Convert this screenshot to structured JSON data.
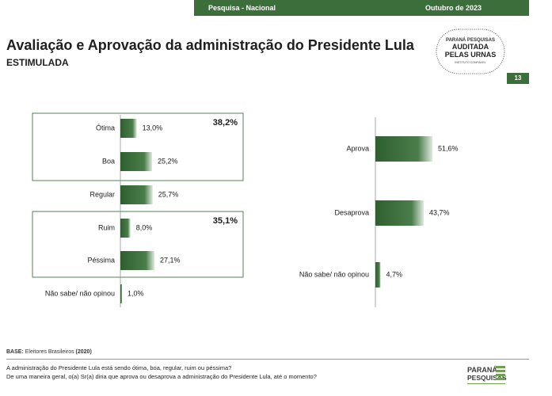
{
  "header": {
    "survey": "Pesquisa - Nacional",
    "date": "Outubro de 2023",
    "page_number": "13"
  },
  "title": "Avaliação e Aprovação da administração do Presidente Lula",
  "subtitle": "ESTIMULADA",
  "seal": {
    "line1": "PARANÁ PESQUISAS",
    "line2": "AUDITADA",
    "line3": "PELAS URNAS",
    "line4": "INSTITUTO CONFIÁVEL"
  },
  "chart_data": [
    {
      "type": "bar",
      "orientation": "horizontal",
      "categories": [
        "Ótima",
        "Boa",
        "Regular",
        "Ruim",
        "Péssima",
        "Não sabe/ não opinou"
      ],
      "values": [
        13.0,
        25.2,
        25.7,
        8.0,
        27.1,
        1.0
      ],
      "value_labels": [
        "13,0%",
        "25,2%",
        "25,7%",
        "8,0%",
        "27,1%",
        "1,0%"
      ],
      "groups": [
        {
          "members": [
            "Ótima",
            "Boa"
          ],
          "total_label": "38,2%"
        },
        {
          "members": [
            "Ruim",
            "Péssima"
          ],
          "total_label": "35,1%"
        }
      ],
      "color": "#3c6e3c"
    },
    {
      "type": "bar",
      "orientation": "horizontal",
      "categories": [
        "Aprova",
        "Desaprova",
        "Não sabe/ não opinou"
      ],
      "values": [
        51.6,
        43.7,
        4.7
      ],
      "value_labels": [
        "51,6%",
        "43,7%",
        "4,7%"
      ],
      "color": "#3c6e3c"
    }
  ],
  "footer": {
    "base_label": "BASE:",
    "base_text": "Eleitores Brasileiros",
    "base_count": "(2020)",
    "question1": "A administração do Presidente Lula está sendo ótima, boa, regular, ruim ou péssima?",
    "question2": "De uma maneira geral, o(a) Sr(a) diria que aprova ou desaprova a administração do Presidente Lula, até o momento?",
    "logo_line1": "PARANÁ",
    "logo_line2": "PESQUISAS"
  }
}
